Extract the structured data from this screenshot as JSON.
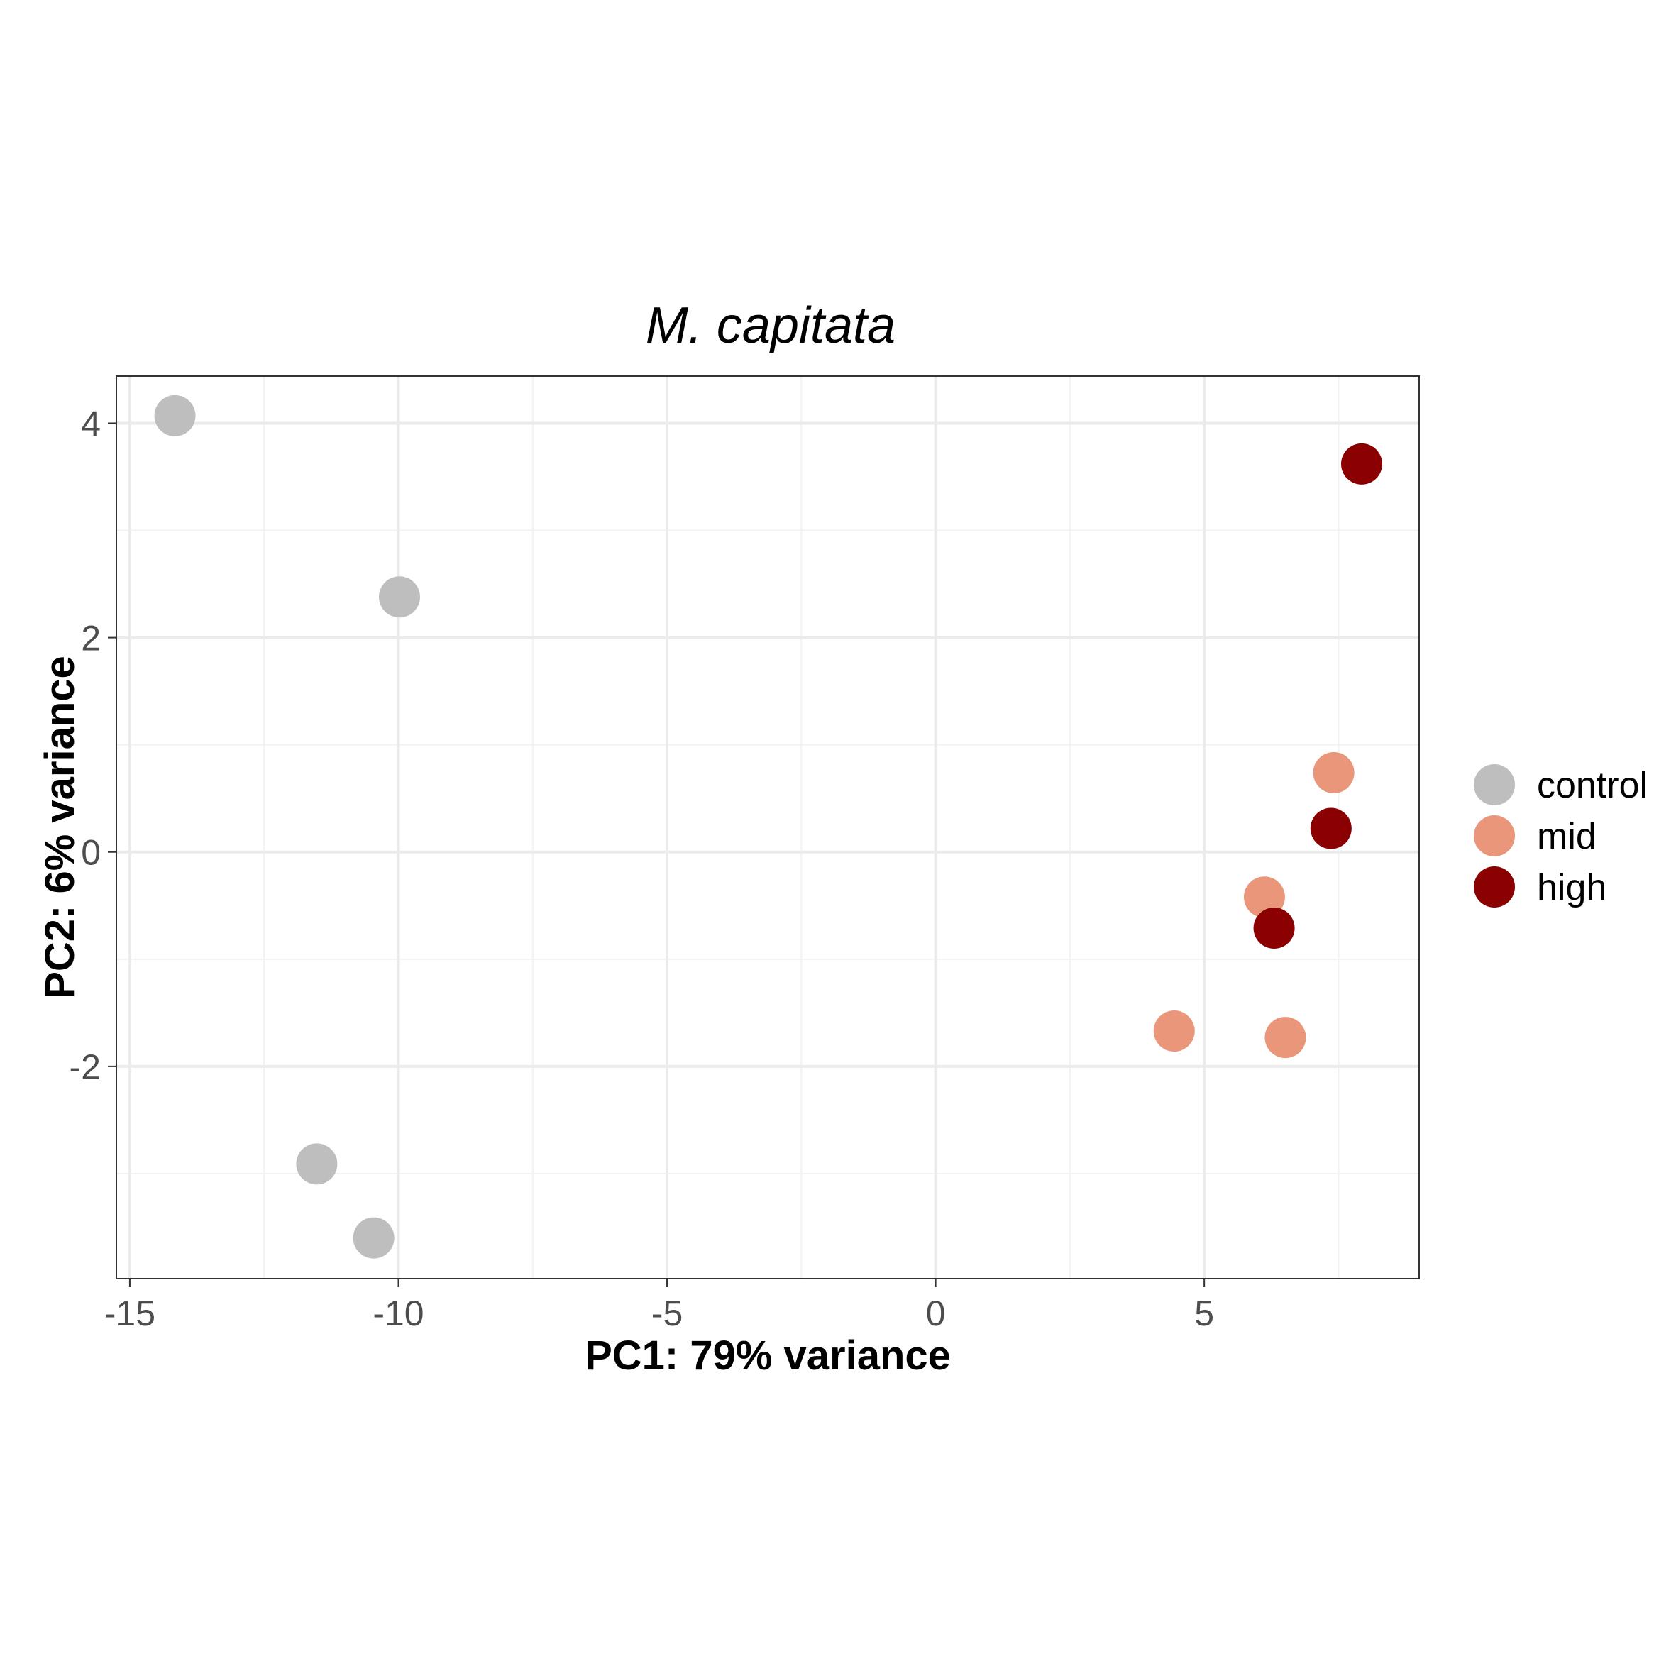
{
  "chart_data": {
    "type": "scatter",
    "title": "M. capitata",
    "xlabel": "PC1: 79% variance",
    "ylabel": "PC2: 6% variance",
    "xlim": [
      -15.25,
      9.0
    ],
    "ylim": [
      -3.98,
      4.44
    ],
    "x_ticks": [
      {
        "value": -15,
        "label": "-15"
      },
      {
        "value": -10,
        "label": "-10"
      },
      {
        "value": -5,
        "label": "-5"
      },
      {
        "value": 0,
        "label": "0"
      },
      {
        "value": 5,
        "label": "5"
      }
    ],
    "y_ticks": [
      {
        "value": -2,
        "label": "-2"
      },
      {
        "value": 0,
        "label": "0"
      },
      {
        "value": 2,
        "label": "2"
      },
      {
        "value": 4,
        "label": "4"
      }
    ],
    "x_minor_ticks": [
      -12.5,
      -7.5,
      -2.5,
      2.5,
      7.5
    ],
    "y_minor_ticks": [
      -3,
      -1,
      1,
      3
    ],
    "grid": true,
    "legend_position": "right",
    "series": [
      {
        "name": "control",
        "color": "#bebebe",
        "points": [
          {
            "x": -14.16,
            "y": 4.07
          },
          {
            "x": -9.98,
            "y": 2.38
          },
          {
            "x": -11.52,
            "y": -2.91
          },
          {
            "x": -10.46,
            "y": -3.6
          }
        ]
      },
      {
        "name": "mid",
        "color": "#e9967a",
        "points": [
          {
            "x": 7.41,
            "y": 0.74
          },
          {
            "x": 6.12,
            "y": -0.42
          },
          {
            "x": 4.44,
            "y": -1.67
          },
          {
            "x": 6.51,
            "y": -1.73
          }
        ]
      },
      {
        "name": "high",
        "color": "#8b0000",
        "points": [
          {
            "x": 7.93,
            "y": 3.62
          },
          {
            "x": 7.36,
            "y": 0.22
          },
          {
            "x": 6.3,
            "y": -0.71
          }
        ]
      }
    ]
  }
}
